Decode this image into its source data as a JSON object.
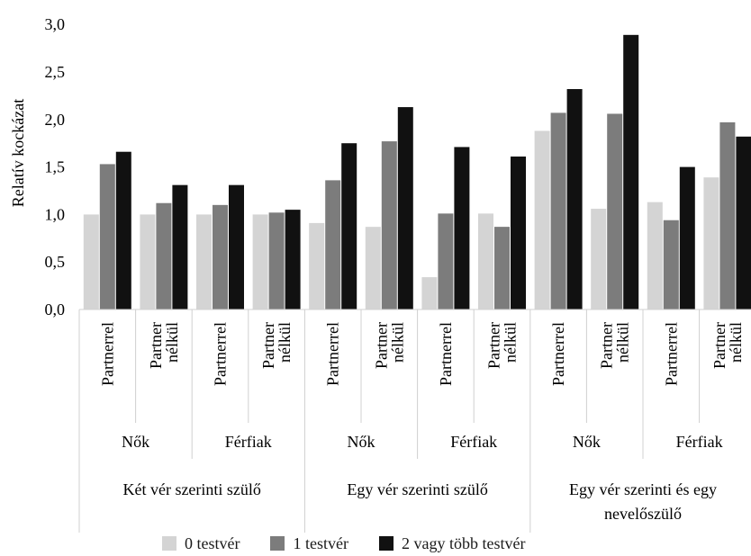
{
  "chart_data": {
    "type": "bar",
    "ylabel": "Relatív kockázat",
    "ylim": [
      0,
      3.0
    ],
    "yticks": [
      "0,0",
      "0,5",
      "1,0",
      "1,5",
      "2,0",
      "2,5",
      "3,0"
    ],
    "ytick_values": [
      0,
      0.5,
      1.0,
      1.5,
      2.0,
      2.5,
      3.0
    ],
    "categories": [
      "Partnerrel",
      "Partner nélkül",
      "Partnerrel",
      "Partner nélkül",
      "Partnerrel",
      "Partner nélkül",
      "Partnerrel",
      "Partner nélkül",
      "Partnerrel",
      "Partner nélkül",
      "Partnerrel",
      "Partner nélkül"
    ],
    "category_lines": [
      [
        "Partnerrel"
      ],
      [
        "Partner",
        "nélkül"
      ],
      [
        "Partnerrel"
      ],
      [
        "Partner",
        "nélkül"
      ],
      [
        "Partnerrel"
      ],
      [
        "Partner",
        "nélkül"
      ],
      [
        "Partnerrel"
      ],
      [
        "Partner",
        "nélkül"
      ],
      [
        "Partnerrel"
      ],
      [
        "Partner",
        "nélkül"
      ],
      [
        "Partnerrel"
      ],
      [
        "Partner",
        "nélkül"
      ]
    ],
    "gender_groups": [
      "Nők",
      "Férfiak",
      "Nők",
      "Férfiak",
      "Nők",
      "Férfiak"
    ],
    "parent_groups": [
      [
        "Két vér szerinti szülő"
      ],
      [
        "Egy vér szerinti szülő"
      ],
      [
        "Egy vér szerinti és egy",
        "nevelőszülő"
      ]
    ],
    "series": [
      {
        "name": "0 testvér",
        "color": "#d4d4d4",
        "values": [
          1.0,
          1.0,
          1.0,
          1.0,
          0.91,
          0.87,
          0.34,
          1.01,
          1.88,
          1.06,
          1.13,
          1.39
        ]
      },
      {
        "name": "1 testvér",
        "color": "#7c7c7c",
        "values": [
          1.53,
          1.12,
          1.1,
          1.02,
          1.36,
          1.77,
          1.01,
          0.87,
          2.07,
          2.06,
          0.94,
          1.97
        ]
      },
      {
        "name": "2 vagy több testvér",
        "color": "#111111",
        "values": [
          1.66,
          1.31,
          1.31,
          1.05,
          1.75,
          2.13,
          1.71,
          1.61,
          2.32,
          2.89,
          1.5,
          1.82
        ]
      }
    ],
    "legend": "bottom",
    "grid": false
  }
}
